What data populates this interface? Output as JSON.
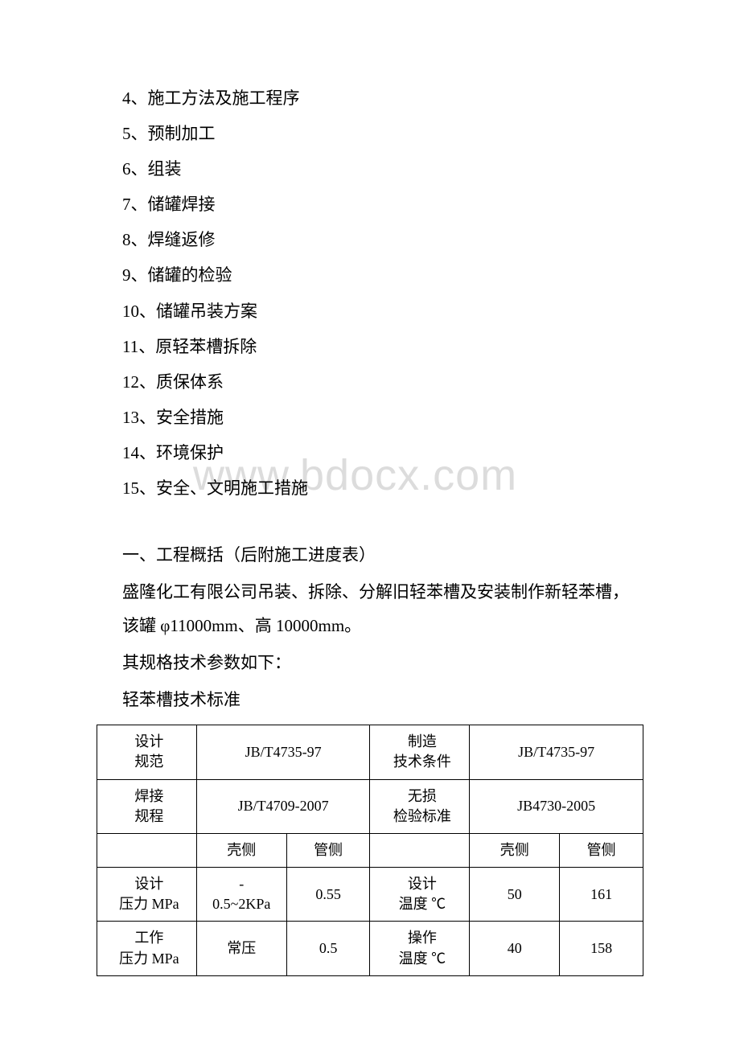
{
  "toc": [
    "4、施工方法及施工程序",
    "5、预制加工",
    "6、组装",
    "7、储罐焊接",
    "8、焊缝返修",
    "9、储罐的检验",
    "10、储罐吊装方案",
    "11、原轻苯槽拆除",
    "12、质保体系",
    "13、安全措施",
    "14、环境保护",
    "15、安全、文明施工措施"
  ],
  "watermark": "www.bdocx.com",
  "section1_title": "一、工程概括（后附施工进度表）",
  "para1": "盛隆化工有限公司吊装、拆除、分解旧轻苯槽及安装制作新轻苯槽，该罐 φ11000mm、高 10000mm。",
  "para2": "其规格技术参数如下：",
  "para3": "轻苯槽技术标准",
  "table": {
    "font_size": 18,
    "border_color": "#000000",
    "text_color": "#000000",
    "col_widths": [
      "15.5%",
      "14%",
      "13%",
      "15.5%",
      "14%",
      "13%"
    ],
    "rows": [
      {
        "cells": [
          {
            "text_lines": [
              "设计",
              "规范"
            ],
            "class": "label-cell"
          },
          {
            "text": "JB/T4735-97",
            "colspan": 2
          },
          {
            "text_lines": [
              "制造",
              "技术条件"
            ],
            "class": "label-cell"
          },
          {
            "text": "JB/T4735-97",
            "colspan": 2
          }
        ]
      },
      {
        "cells": [
          {
            "text_lines": [
              "焊接",
              "规程"
            ],
            "class": "label-cell"
          },
          {
            "text": "JB/T4709-2007",
            "colspan": 2
          },
          {
            "text_lines": [
              "无损",
              "检验标准"
            ],
            "class": "label-cell"
          },
          {
            "text": "JB4730-2005",
            "colspan": 2
          }
        ]
      },
      {
        "cells": [
          {
            "text": ""
          },
          {
            "text": "壳侧"
          },
          {
            "text": "管侧"
          },
          {
            "text": ""
          },
          {
            "text": "壳侧"
          },
          {
            "text": "管侧"
          }
        ]
      },
      {
        "cells": [
          {
            "text_lines": [
              "设计",
              "压力 MPa"
            ],
            "class": "label-cell"
          },
          {
            "text_lines": [
              "-",
              "0.5~2KPa"
            ]
          },
          {
            "text": "0.55"
          },
          {
            "text_lines": [
              "设计",
              "温度 ℃"
            ],
            "class": "label-cell"
          },
          {
            "text": "50"
          },
          {
            "text": "161"
          }
        ]
      },
      {
        "cells": [
          {
            "text_lines": [
              "工作",
              "压力 MPa"
            ],
            "class": "label-cell"
          },
          {
            "text": "常压"
          },
          {
            "text": "0.5"
          },
          {
            "text_lines": [
              "操作",
              "温度 ℃"
            ],
            "class": "label-cell"
          },
          {
            "text": "40"
          },
          {
            "text": "158"
          }
        ]
      }
    ]
  },
  "colors": {
    "background": "#ffffff",
    "text": "#000000",
    "watermark": "#dcdcdc",
    "table_border": "#000000"
  }
}
